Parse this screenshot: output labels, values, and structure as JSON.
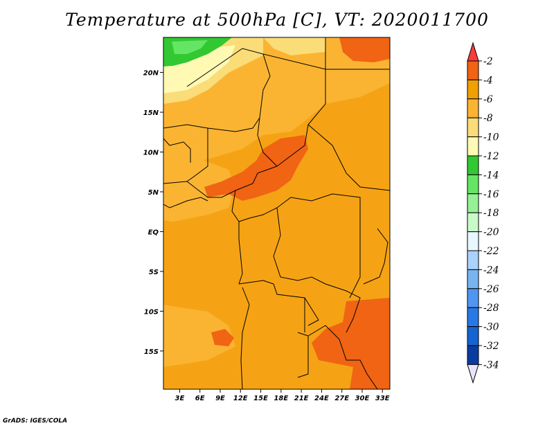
{
  "title": "Temperature at 500hPa [C], VT: 2020011700",
  "credit": "GrADS: IGES/COLA",
  "map": {
    "lat_ticks": [
      {
        "value": 20,
        "label": "20N"
      },
      {
        "value": 15,
        "label": "15N"
      },
      {
        "value": 10,
        "label": "10N"
      },
      {
        "value": 5,
        "label": "5N"
      },
      {
        "value": 0,
        "label": "EQ"
      },
      {
        "value": -5,
        "label": "5S"
      },
      {
        "value": -10,
        "label": "10S"
      },
      {
        "value": -15,
        "label": "15S"
      }
    ],
    "lon_ticks": [
      {
        "value": 3,
        "label": "3E"
      },
      {
        "value": 6,
        "label": "6E"
      },
      {
        "value": 9,
        "label": "9E"
      },
      {
        "value": 12,
        "label": "12E"
      },
      {
        "value": 15,
        "label": "15E"
      },
      {
        "value": 18,
        "label": "18E"
      },
      {
        "value": 21,
        "label": "21E"
      },
      {
        "value": 24,
        "label": "24E"
      },
      {
        "value": 27,
        "label": "27E"
      },
      {
        "value": 30,
        "label": "30E"
      },
      {
        "value": 33,
        "label": "33E"
      }
    ]
  },
  "colorbar": {
    "labels": [
      "-2",
      "-4",
      "-6",
      "-8",
      "-10",
      "-12",
      "-14",
      "-16",
      "-18",
      "-20",
      "-22",
      "-24",
      "-26",
      "-28",
      "-30",
      "-32",
      "-34"
    ],
    "colors": [
      "#fa3c3c",
      "#f06414",
      "#f0a000",
      "#fab432",
      "#fadc78",
      "#fff9b4",
      "#32c832",
      "#64e664",
      "#96f096",
      "#c8fac8",
      "#e6f7ff",
      "#aad2fa",
      "#78b4f0",
      "#5096f0",
      "#2878e6",
      "#1464d2",
      "#0a3ca0",
      "#000064",
      "#e6e6fa"
    ]
  },
  "fields": {
    "background": "#f5a314",
    "warm": "#f06414",
    "mid": "#fab432",
    "cool": "#fadc78",
    "pale": "#fff9b4",
    "green": "#32c832",
    "lightgreen": "#64e664"
  }
}
